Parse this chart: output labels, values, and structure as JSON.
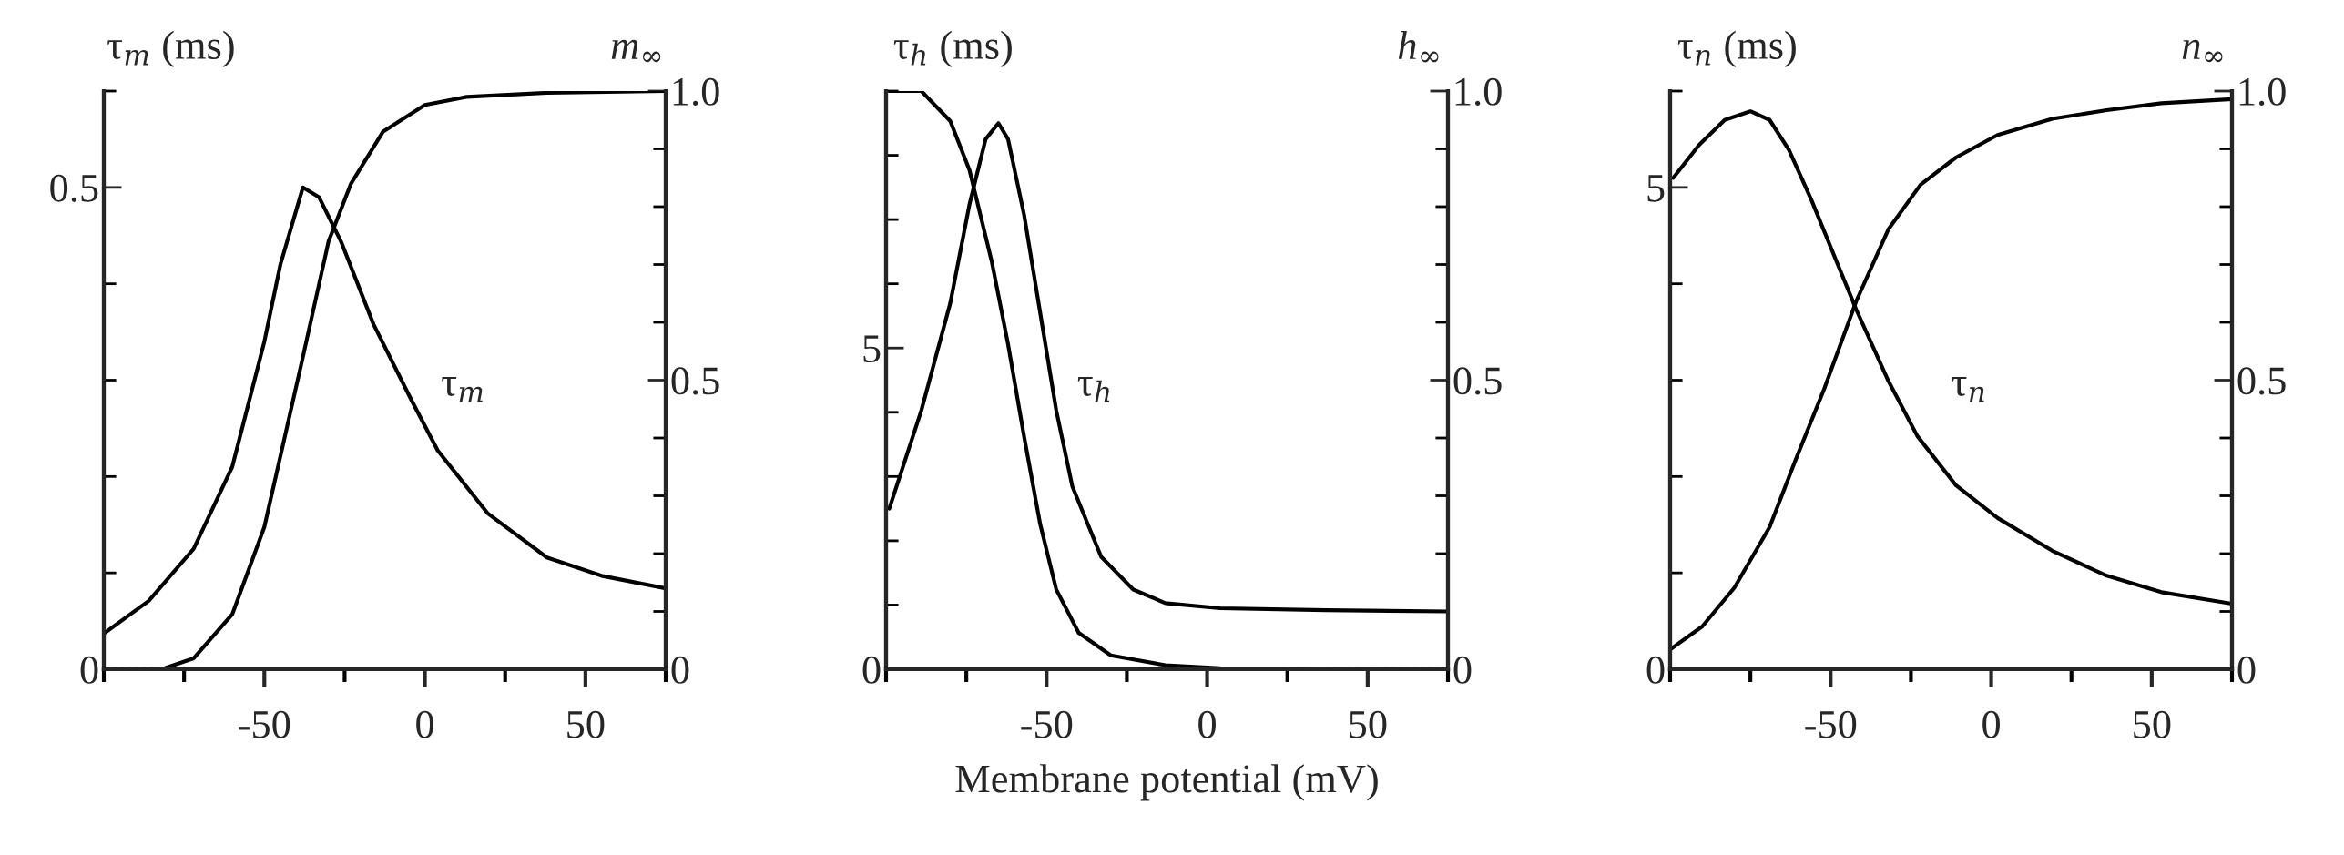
{
  "chart_data": [
    {
      "type": "line",
      "ylabel": "τ$_{m}$ (ms)",
      "y2label": "m$_{∞}$",
      "line_style": "solid",
      "grid": false,
      "xlim": [
        -100,
        75
      ],
      "xticks": [
        {
          "value": -100,
          "label": null
        },
        {
          "value": -75,
          "label": null
        },
        -50,
        {
          "value": -25,
          "label": null
        },
        0,
        {
          "value": 25,
          "label": null
        },
        50,
        {
          "value": 75,
          "label": null
        }
      ],
      "ylim": [
        0,
        0.6
      ],
      "yticks": [
        0,
        {
          "value": 0.1,
          "label": null
        },
        {
          "value": 0.2,
          "label": null
        },
        {
          "value": 0.3,
          "label": null
        },
        {
          "value": 0.4,
          "label": null
        },
        0.5,
        {
          "value": 0.6,
          "label": null
        }
      ],
      "y2lim": [
        0,
        1.0
      ],
      "y2ticks": [
        0,
        {
          "value": 0.1,
          "label": null
        },
        {
          "value": 0.2,
          "label": null
        },
        {
          "value": 0.3,
          "label": null
        },
        {
          "value": 0.4,
          "label": null
        },
        0.5,
        {
          "value": 0.6,
          "label": null
        },
        {
          "value": 0.7,
          "label": null
        },
        {
          "value": 0.8,
          "label": null
        },
        {
          "value": 0.9,
          "label": null
        },
        {
          "value": 1.0,
          "label": "1.0"
        }
      ],
      "series": [
        {
          "color": "#000000",
          "x": [
            -100,
            -86,
            -72,
            -60,
            -50,
            -45,
            -38,
            -33,
            -26,
            -16,
            -4,
            4,
            19.5,
            38,
            55,
            75
          ],
          "values": [
            0.037,
            0.071,
            0.125,
            0.21,
            0.34,
            0.42,
            0.5,
            0.49,
            0.443,
            0.358,
            0.278,
            0.227,
            0.162,
            0.116,
            0.097,
            0.084
          ]
        },
        {
          "color": "#000000",
          "axis": "y2",
          "x": [
            -100,
            -81,
            -72,
            -60,
            -50,
            -38,
            -30,
            -23,
            -13,
            0,
            13,
            38,
            75
          ],
          "values": [
            0,
            0.002,
            0.019,
            0.095,
            0.246,
            0.54,
            0.74,
            0.84,
            0.93,
            0.976,
            0.99,
            0.997,
            1.0
          ]
        }
      ],
      "annotations": [
        "τ$_{m}$"
      ]
    },
    {
      "type": "line",
      "ylabel": "τ$_{h}$ (ms)",
      "y2label": "h$_{∞}$",
      "xlabel": "Membrane potential (mV)",
      "line_style": "solid",
      "grid": false,
      "xlim": [
        -100,
        75
      ],
      "xticks": [
        {
          "value": -100,
          "label": null
        },
        {
          "value": -75,
          "label": null
        },
        -50,
        {
          "value": -25,
          "label": null
        },
        0,
        {
          "value": 25,
          "label": null
        },
        50,
        {
          "value": 75,
          "label": null
        }
      ],
      "ylim": [
        0,
        9
      ],
      "yticks": [
        0,
        {
          "value": 1,
          "label": null
        },
        {
          "value": 2,
          "label": null
        },
        {
          "value": 3,
          "label": null
        },
        {
          "value": 4,
          "label": null
        },
        5,
        {
          "value": 6,
          "label": null
        },
        {
          "value": 7,
          "label": null
        },
        {
          "value": 8,
          "label": null
        },
        {
          "value": 9,
          "label": null
        }
      ],
      "y2lim": [
        0,
        1.0
      ],
      "y2ticks": [
        0,
        {
          "value": 0.1,
          "label": null
        },
        {
          "value": 0.2,
          "label": null
        },
        {
          "value": 0.3,
          "label": null
        },
        {
          "value": 0.4,
          "label": null
        },
        0.5,
        {
          "value": 0.6,
          "label": null
        },
        {
          "value": 0.7,
          "label": null
        },
        {
          "value": 0.8,
          "label": null
        },
        {
          "value": 0.9,
          "label": null
        },
        {
          "value": 1.0,
          "label": "1.0"
        }
      ],
      "series": [
        {
          "color": "#000000",
          "x": [
            -99,
            -89,
            -80,
            -74,
            -69,
            -65,
            -62,
            -57,
            -52,
            -47,
            -42,
            -33,
            -23,
            -13,
            4,
            37,
            75
          ],
          "values": [
            2.5,
            4.03,
            5.7,
            7.24,
            8.25,
            8.5,
            8.25,
            7.07,
            5.55,
            4.03,
            2.85,
            1.75,
            1.24,
            1.03,
            0.95,
            0.92,
            0.9
          ]
        },
        {
          "color": "#000000",
          "axis": "y2",
          "x": [
            -99,
            -89,
            -80,
            -74,
            -67,
            -62,
            -57,
            -52,
            -47,
            -40,
            -30,
            -13,
            4,
            75
          ],
          "values": [
            1.0,
            1.0,
            0.948,
            0.863,
            0.703,
            0.562,
            0.402,
            0.251,
            0.138,
            0.063,
            0.024,
            0.007,
            0.002,
            0
          ]
        }
      ],
      "annotations": [
        "τ$_{h}$"
      ]
    },
    {
      "type": "line",
      "ylabel": "τ$_{n}$ (ms)",
      "y2label": "n$_{∞}$",
      "line_style": "solid",
      "grid": false,
      "xlim": [
        -100,
        75
      ],
      "xticks": [
        {
          "value": -100,
          "label": null
        },
        {
          "value": -75,
          "label": null
        },
        -50,
        {
          "value": -25,
          "label": null
        },
        0,
        {
          "value": 25,
          "label": null
        },
        50,
        {
          "value": 75,
          "label": null
        }
      ],
      "ylim": [
        0,
        6
      ],
      "yticks": [
        0,
        {
          "value": 1,
          "label": null
        },
        {
          "value": 2,
          "label": null
        },
        {
          "value": 3,
          "label": null
        },
        {
          "value": 4,
          "label": null
        },
        5,
        {
          "value": 6,
          "label": null
        }
      ],
      "y2lim": [
        0,
        1.0
      ],
      "y2ticks": [
        0,
        {
          "value": 0.1,
          "label": null
        },
        {
          "value": 0.2,
          "label": null
        },
        {
          "value": 0.3,
          "label": null
        },
        {
          "value": 0.4,
          "label": null
        },
        0.5,
        {
          "value": 0.6,
          "label": null
        },
        {
          "value": 0.7,
          "label": null
        },
        {
          "value": 0.8,
          "label": null
        },
        {
          "value": 0.9,
          "label": null
        },
        {
          "value": 1.0,
          "label": "1.0"
        }
      ],
      "series": [
        {
          "color": "#000000",
          "x": [
            -99,
            -91,
            -83,
            -75,
            -69,
            -63,
            -56,
            -49,
            -42,
            -32,
            -23,
            -11,
            2,
            19,
            36,
            53,
            75
          ],
          "values": [
            5.1,
            5.44,
            5.7,
            5.79,
            5.7,
            5.39,
            4.87,
            4.3,
            3.73,
            2.99,
            2.42,
            1.91,
            1.57,
            1.23,
            0.97,
            0.8,
            0.68
          ]
        },
        {
          "color": "#000000",
          "axis": "y2",
          "x": [
            -100,
            -90,
            -80,
            -69,
            -61,
            -52,
            -42,
            -32,
            -22,
            -11,
            2,
            19,
            36,
            53,
            75
          ],
          "values": [
            0.034,
            0.074,
            0.141,
            0.246,
            0.361,
            0.485,
            0.637,
            0.761,
            0.838,
            0.885,
            0.924,
            0.952,
            0.967,
            0.979,
            0.986
          ]
        }
      ],
      "annotations": [
        "τ$_{n}$"
      ]
    }
  ]
}
